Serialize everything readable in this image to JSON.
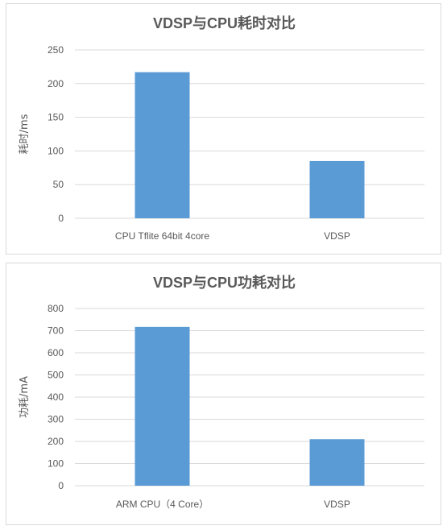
{
  "chart_data": [
    {
      "type": "bar",
      "title": "VDSP与CPU耗时对比",
      "xlabel": "",
      "ylabel": "耗时/ms",
      "categories": [
        "CPU Tflite 64bit 4core",
        "VDSP"
      ],
      "values": [
        217,
        85
      ],
      "ylim": [
        0,
        250
      ],
      "yticks": [
        0,
        50,
        100,
        150,
        200,
        250
      ],
      "grid": true,
      "color": "#5b9bd5"
    },
    {
      "type": "bar",
      "title": "VDSP与CPU功耗对比",
      "xlabel": "",
      "ylabel": "功耗/mA",
      "categories": [
        "ARM CPU（4 Core）",
        "VDSP"
      ],
      "values": [
        717,
        210
      ],
      "ylim": [
        0,
        800
      ],
      "yticks": [
        0,
        100,
        200,
        300,
        400,
        500,
        600,
        700,
        800
      ],
      "grid": true,
      "color": "#5b9bd5"
    }
  ]
}
